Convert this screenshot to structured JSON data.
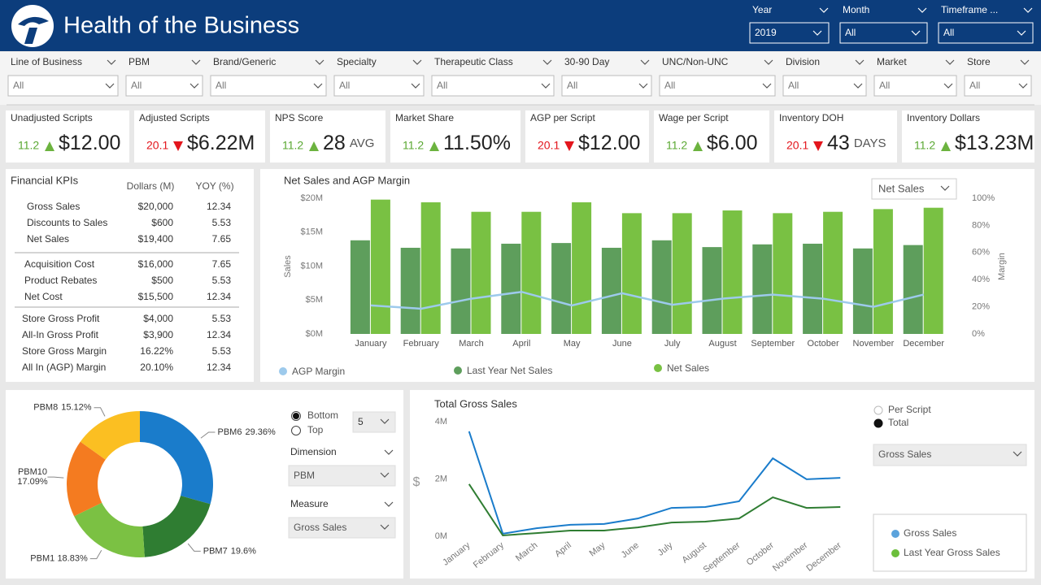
{
  "header": {
    "title": "Health of the Business",
    "slicers": [
      {
        "label": "Year",
        "value": "2019"
      },
      {
        "label": "Month",
        "value": "All"
      },
      {
        "label": "Timeframe ...",
        "value": "All"
      }
    ]
  },
  "filters": [
    {
      "label": "Line of Business",
      "value": "All"
    },
    {
      "label": "PBM",
      "value": "All"
    },
    {
      "label": "Brand/Generic",
      "value": "All"
    },
    {
      "label": "Specialty",
      "value": "All"
    },
    {
      "label": "Therapeutic Class",
      "value": "All"
    },
    {
      "label": "30-90 Day",
      "value": "All"
    },
    {
      "label": "UNC/Non-UNC",
      "value": "All"
    },
    {
      "label": "Division",
      "value": "All"
    },
    {
      "label": "Market",
      "value": "All"
    },
    {
      "label": "Store",
      "value": "All"
    }
  ],
  "kpis": [
    {
      "label": "Unadjusted Scripts",
      "change": "11.2",
      "direction": "up",
      "value": "$12.00"
    },
    {
      "label": "Adjusted Scripts",
      "change": "20.1",
      "direction": "down",
      "value": "$6.22M"
    },
    {
      "label": "NPS Score",
      "change": "11.2",
      "direction": "up",
      "value": "28",
      "unit": "AVG"
    },
    {
      "label": "Market Share",
      "change": "11.2",
      "direction": "up",
      "value": "11.50%"
    },
    {
      "label": "AGP per Script",
      "change": "20.1",
      "direction": "down",
      "value": "$12.00"
    },
    {
      "label": "Wage per Script",
      "change": "11.2",
      "direction": "up",
      "value": "$6.00"
    },
    {
      "label": "Inventory DOH",
      "change": "20.1",
      "direction": "down",
      "value": "43",
      "unit": "DAYS"
    },
    {
      "label": "Inventory Dollars",
      "change": "11.2",
      "direction": "up",
      "value": "$13.23M"
    }
  ],
  "financial_kpis": {
    "title": "Financial KPIs",
    "columns": [
      "Dollars (M)",
      "YOY (%)"
    ],
    "groups": [
      [
        [
          "Gross Sales",
          "$20,000",
          "12.34"
        ],
        [
          "Discounts to Sales",
          "$600",
          "5.53"
        ],
        [
          "Net Sales",
          "$19,400",
          "7.65"
        ]
      ],
      [
        [
          "Acquisition Cost",
          "$16,000",
          "7.65"
        ],
        [
          "Product Rebates",
          "$500",
          "5.53"
        ],
        [
          "Net Cost",
          "$15,500",
          "12.34"
        ]
      ],
      [
        [
          "Store Gross Profit",
          "$4,000",
          "5.53"
        ],
        [
          "All-In Gross Profit",
          "$3,900",
          "12.34"
        ],
        [
          "Store Gross Margin",
          "16.22%",
          "5.53"
        ],
        [
          "All In (AGP) Margin",
          "20.10%",
          "12.34"
        ]
      ]
    ]
  },
  "controls": {
    "rank_options": [
      "Bottom",
      "Top"
    ],
    "rank_selected": 0,
    "count": "5",
    "dimension": {
      "label": "Dimension",
      "value": "PBM"
    },
    "measure": {
      "label": "Measure",
      "value": "Gross Sales"
    },
    "view_options": [
      "Per Script",
      "Total"
    ],
    "view_selected": 1,
    "view_measure": "Gross Sales"
  },
  "chart_data": [
    {
      "type": "bar",
      "title": "Net Sales and AGP Margin",
      "dropdown": "Net Sales",
      "y_label": "Sales",
      "y2_label": "Margin",
      "categories": [
        "January",
        "February",
        "March",
        "April",
        "May",
        "June",
        "July",
        "August",
        "September",
        "October",
        "November",
        "December"
      ],
      "series": [
        {
          "name": "Last Year Net Sales",
          "color": "#5e9e5c",
          "values": [
            13.8,
            12.7,
            12.6,
            13.3,
            13.4,
            12.7,
            13.8,
            12.8,
            13.2,
            13.3,
            12.6,
            13.1
          ]
        },
        {
          "name": "Net Sales",
          "color": "#79c143",
          "values": [
            19.8,
            19.4,
            18.0,
            18.0,
            19.4,
            17.8,
            17.8,
            18.2,
            17.8,
            18.0,
            18.4,
            18.6
          ]
        },
        {
          "name": "AGP Margin",
          "color": "#9dcaec",
          "type": "line",
          "axis": "y2",
          "values": [
            21,
            18.6,
            26,
            31,
            21,
            30,
            21.5,
            26,
            29,
            26,
            20,
            29
          ]
        }
      ],
      "ylim": [
        0,
        20
      ],
      "yticks": [
        {
          "value": 0,
          "label": "$0M"
        },
        {
          "value": 5,
          "label": "$5M"
        },
        {
          "value": 10,
          "label": "$10M"
        },
        {
          "value": 15,
          "label": "$15M"
        },
        {
          "value": 20,
          "label": "$20M"
        }
      ],
      "y2lim": [
        0,
        100
      ],
      "y2ticks": [
        {
          "value": 0,
          "label": "0%"
        },
        {
          "value": 20,
          "label": "20%"
        },
        {
          "value": 40,
          "label": "40%"
        },
        {
          "value": 60,
          "label": "60%"
        },
        {
          "value": 80,
          "label": "80%"
        },
        {
          "value": 100,
          "label": "100%"
        }
      ]
    },
    {
      "type": "pie",
      "donut": true,
      "categories": [
        "PBM6",
        "PBM7",
        "PBM1",
        "PBM10",
        "PBM8"
      ],
      "values": [
        29.36,
        19.6,
        18.83,
        17.09,
        15.12
      ],
      "value_labels": [
        "29.36%",
        "19.6%",
        "18.83%",
        "17.09%",
        "15.12%"
      ],
      "colors": [
        "#1a7ccb",
        "#2f7d32",
        "#7bc143",
        "#f47b20",
        "#fbbf22"
      ]
    },
    {
      "type": "line",
      "title": "Total Gross Sales",
      "y_label": "$",
      "categories": [
        "January",
        "February",
        "March",
        "April",
        "May",
        "June",
        "July",
        "August",
        "September",
        "October",
        "November",
        "December"
      ],
      "series": [
        {
          "name": "Gross Sales",
          "color": "#1a7ccb",
          "values": [
            3.66,
            0.09,
            0.28,
            0.4,
            0.43,
            0.62,
            0.99,
            1.02,
            1.22,
            2.72,
            1.99,
            2.04
          ]
        },
        {
          "name": "Last Year Gross Sales",
          "color": "#2f7d32",
          "values": [
            1.82,
            0.03,
            0.11,
            0.2,
            0.2,
            0.31,
            0.48,
            0.51,
            0.62,
            1.36,
            0.99,
            1.02
          ]
        }
      ],
      "legend_colors": [
        "#5ba3dc",
        "#6cbf3c"
      ],
      "ylim": [
        0,
        4
      ],
      "yticks": [
        {
          "value": 0,
          "label": "0M"
        },
        {
          "value": 2,
          "label": "2M"
        },
        {
          "value": 4,
          "label": "4M"
        }
      ]
    }
  ]
}
